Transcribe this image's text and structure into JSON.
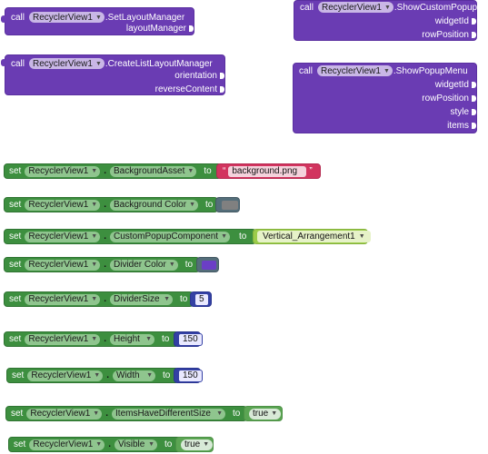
{
  "component": "RecyclerView1",
  "keywords": {
    "call": "call",
    "set": "set",
    "to": "to"
  },
  "call_blocks": {
    "set_layout": {
      "method": ".SetLayoutManager",
      "params": [
        "layoutManager"
      ]
    },
    "create_list": {
      "method": ".CreateListLayoutManager",
      "params": [
        "orientation",
        "reverseContent"
      ]
    },
    "show_custom_popup": {
      "method": ".ShowCustomPopup",
      "params": [
        "widgetId",
        "rowPosition"
      ]
    },
    "show_popup_menu": {
      "method": ".ShowPopupMenu",
      "params": [
        "widgetId",
        "rowPosition",
        "style",
        "items"
      ]
    }
  },
  "set_blocks": {
    "background_asset": {
      "property": "BackgroundAsset",
      "value": "background.png",
      "quote_open": "“",
      "quote_close": "”"
    },
    "background_color": {
      "property": "Background Color",
      "value_color": "#808080"
    },
    "custom_popup": {
      "property": "CustomPopupComponent",
      "value": "Vertical_Arrangement1"
    },
    "divider_color": {
      "property": "Divider Color",
      "value_color": "#6b3fc6"
    },
    "divider_size": {
      "property": "DividerSize",
      "value": "5"
    },
    "height": {
      "property": "Height",
      "value": "150"
    },
    "width": {
      "property": "Width",
      "value": "150"
    },
    "items_diff": {
      "property": "ItemsHaveDifferentSize",
      "value": "true"
    },
    "visible": {
      "property": "Visible",
      "value": "true"
    }
  },
  "colors": {
    "call_block": "#6a3cb3",
    "set_block": "#3d8f3f",
    "text_block": "#d2345f",
    "color_block_frame": "#546e7a",
    "number_block": "#3340a4",
    "logic_block": "#5ba553",
    "component_block": "#9ccc4b"
  },
  "icons": {
    "dropdown": "triangle-down-icon",
    "quote": "quote-icon"
  }
}
